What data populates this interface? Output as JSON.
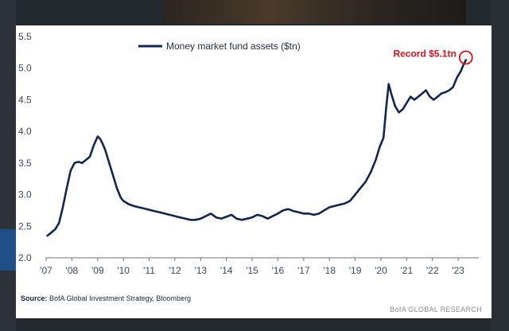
{
  "chart_data": {
    "type": "line",
    "legend": {
      "label": "Money market fund assets ($tn)",
      "position": "top-center"
    },
    "annotation": {
      "label": "Record $5.1tn",
      "x": 2023.3,
      "y": 5.13,
      "color": "#e0101c"
    },
    "ylim": [
      2.0,
      5.5
    ],
    "yticks": [
      {
        "value": 2.0,
        "label": "2.0"
      },
      {
        "value": 2.5,
        "label": "2.5"
      },
      {
        "value": 3.0,
        "label": "3.0"
      },
      {
        "value": 3.5,
        "label": "3.5"
      },
      {
        "value": 4.0,
        "label": "4.0"
      },
      {
        "value": 4.5,
        "label": "4.5"
      },
      {
        "value": 5.0,
        "label": "5.0"
      },
      {
        "value": 5.5,
        "label": "5.5"
      }
    ],
    "xlim": [
      2007.0,
      2023.8
    ],
    "xticks": [
      {
        "value": 2007,
        "label": "'07"
      },
      {
        "value": 2008,
        "label": "'08"
      },
      {
        "value": 2009,
        "label": "'09"
      },
      {
        "value": 2010,
        "label": "'10"
      },
      {
        "value": 2011,
        "label": "'11"
      },
      {
        "value": 2012,
        "label": "'12"
      },
      {
        "value": 2013,
        "label": "'13"
      },
      {
        "value": 2014,
        "label": "'14"
      },
      {
        "value": 2015,
        "label": "'15"
      },
      {
        "value": 2016,
        "label": "'16"
      },
      {
        "value": 2017,
        "label": "'17"
      },
      {
        "value": 2018,
        "label": "'18"
      },
      {
        "value": 2019,
        "label": "'19"
      },
      {
        "value": 2020,
        "label": "'20"
      },
      {
        "value": 2021,
        "label": "'21"
      },
      {
        "value": 2022,
        "label": "'22"
      },
      {
        "value": 2023,
        "label": "'23"
      }
    ],
    "grid": false,
    "line_color": "#14264f",
    "series": [
      {
        "name": "Money market fund assets ($tn)",
        "x": [
          2007.05,
          2007.2,
          2007.35,
          2007.5,
          2007.65,
          2007.8,
          2007.95,
          2008.1,
          2008.25,
          2008.4,
          2008.55,
          2008.7,
          2008.85,
          2009.0,
          2009.1,
          2009.2,
          2009.3,
          2009.45,
          2009.6,
          2009.75,
          2009.9,
          2010.0,
          2010.2,
          2010.4,
          2010.6,
          2010.8,
          2011.0,
          2011.2,
          2011.4,
          2011.6,
          2011.8,
          2012.0,
          2012.2,
          2012.4,
          2012.6,
          2012.8,
          2013.0,
          2013.2,
          2013.4,
          2013.6,
          2013.8,
          2014.0,
          2014.2,
          2014.4,
          2014.6,
          2014.8,
          2015.0,
          2015.2,
          2015.4,
          2015.6,
          2015.8,
          2016.0,
          2016.2,
          2016.4,
          2016.6,
          2016.8,
          2017.0,
          2017.2,
          2017.4,
          2017.6,
          2017.8,
          2018.0,
          2018.2,
          2018.4,
          2018.6,
          2018.8,
          2019.0,
          2019.2,
          2019.4,
          2019.6,
          2019.8,
          2019.95,
          2020.1,
          2020.2,
          2020.3,
          2020.4,
          2020.55,
          2020.7,
          2020.85,
          2021.0,
          2021.15,
          2021.3,
          2021.45,
          2021.6,
          2021.75,
          2021.9,
          2022.05,
          2022.2,
          2022.35,
          2022.5,
          2022.65,
          2022.8,
          2022.95,
          2023.1,
          2023.2,
          2023.3
        ],
        "values": [
          2.35,
          2.4,
          2.45,
          2.55,
          2.8,
          3.1,
          3.38,
          3.5,
          3.52,
          3.5,
          3.55,
          3.6,
          3.78,
          3.92,
          3.88,
          3.8,
          3.7,
          3.5,
          3.3,
          3.1,
          2.95,
          2.9,
          2.85,
          2.82,
          2.8,
          2.78,
          2.76,
          2.74,
          2.72,
          2.7,
          2.68,
          2.66,
          2.64,
          2.62,
          2.6,
          2.6,
          2.62,
          2.66,
          2.7,
          2.64,
          2.62,
          2.65,
          2.68,
          2.62,
          2.6,
          2.62,
          2.64,
          2.68,
          2.66,
          2.62,
          2.66,
          2.7,
          2.75,
          2.77,
          2.74,
          2.72,
          2.7,
          2.7,
          2.68,
          2.7,
          2.75,
          2.8,
          2.82,
          2.84,
          2.86,
          2.9,
          3.0,
          3.1,
          3.2,
          3.35,
          3.55,
          3.75,
          3.9,
          4.35,
          4.75,
          4.6,
          4.4,
          4.3,
          4.35,
          4.45,
          4.55,
          4.5,
          4.55,
          4.6,
          4.65,
          4.55,
          4.5,
          4.55,
          4.6,
          4.62,
          4.65,
          4.7,
          4.85,
          4.95,
          5.05,
          5.13
        ]
      }
    ]
  },
  "footer": {
    "source_label": "Source:",
    "source_text": "BofA Global Investment Strategy, Bloomberg",
    "brand": "BofA GLOBAL RESEARCH"
  }
}
